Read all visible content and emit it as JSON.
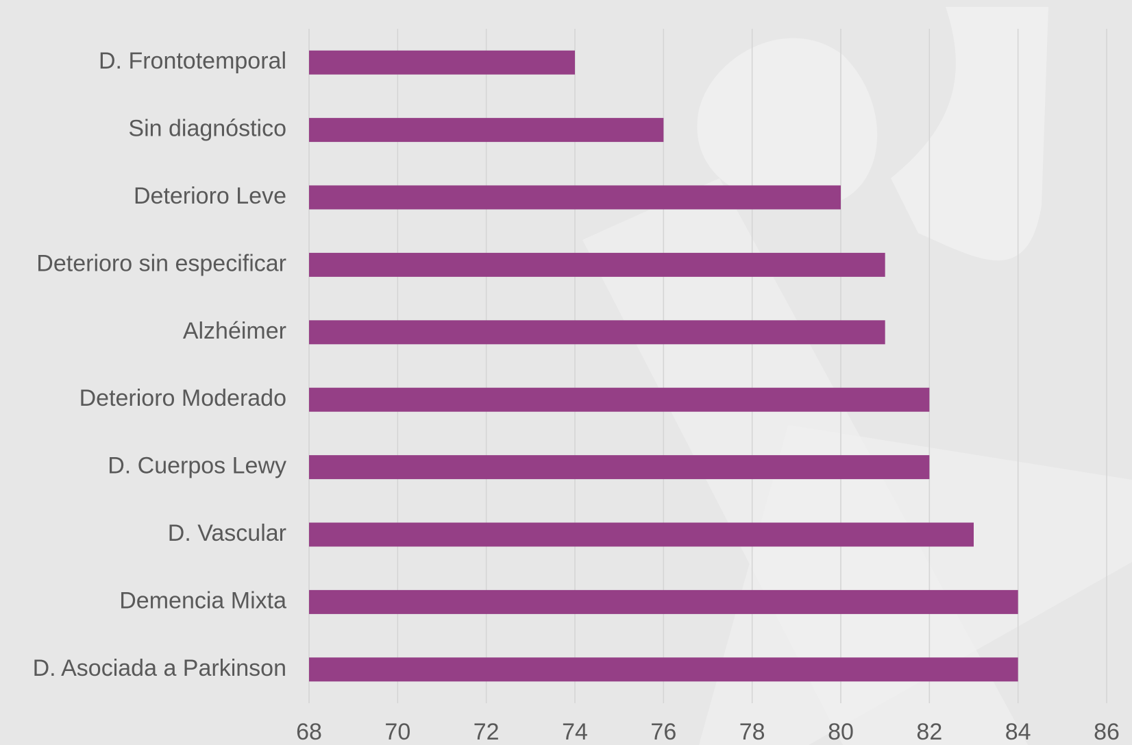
{
  "chart_data": {
    "type": "bar",
    "orientation": "horizontal",
    "categories": [
      "D. Frontotemporal",
      "Sin diagnóstico",
      "Deterioro Leve",
      "Deterioro sin especificar",
      "Alzhéimer",
      "Deterioro Moderado",
      "D. Cuerpos Lewy",
      "D. Vascular",
      "Demencia Mixta",
      "D. Asociada a Parkinson"
    ],
    "values": [
      74,
      76,
      80,
      81,
      81,
      82,
      82,
      83,
      84,
      84
    ],
    "color": "#953f86",
    "xlim": [
      68,
      86
    ],
    "xticks": [
      68,
      70,
      72,
      74,
      76,
      78,
      80,
      82,
      84,
      86
    ],
    "grid": true
  }
}
